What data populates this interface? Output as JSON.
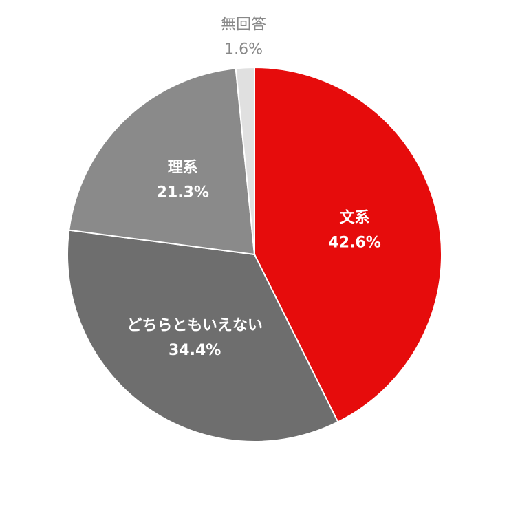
{
  "chart_data": {
    "type": "pie",
    "categories": [
      "文系",
      "どちらともいえない",
      "理系",
      "無回答"
    ],
    "values": [
      42.6,
      34.4,
      21.3,
      1.6
    ],
    "value_labels": [
      "42.6%",
      "34.4%",
      "21.3%",
      "1.6%"
    ],
    "colors": [
      "#e60c0c",
      "#6e6e6e",
      "#8a8a8a",
      "#e0e0e0"
    ]
  }
}
